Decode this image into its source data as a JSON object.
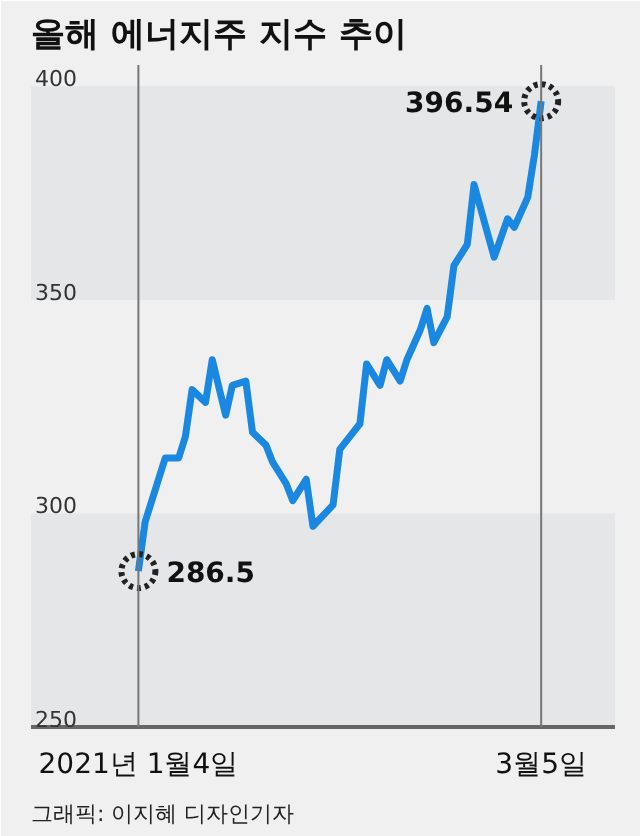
{
  "chart_data": {
    "type": "line",
    "title": "올해 에너지주 지수 추이",
    "x": [
      "2021-01-04",
      "2021-01-05",
      "2021-01-07",
      "2021-01-08",
      "2021-01-10",
      "2021-01-11",
      "2021-01-12",
      "2021-01-14",
      "2021-01-15",
      "2021-01-17",
      "2021-01-18",
      "2021-01-20",
      "2021-01-21",
      "2021-01-23",
      "2021-01-24",
      "2021-01-26",
      "2021-01-27",
      "2021-01-29",
      "2021-01-30",
      "2021-02-02",
      "2021-02-03",
      "2021-02-06",
      "2021-02-07",
      "2021-02-09",
      "2021-02-10",
      "2021-02-12",
      "2021-02-13",
      "2021-02-15",
      "2021-02-16",
      "2021-02-17",
      "2021-02-19",
      "2021-02-20",
      "2021-02-22",
      "2021-02-23",
      "2021-02-26",
      "2021-02-28",
      "2021-03-01",
      "2021-03-03",
      "2021-03-04",
      "2021-03-05"
    ],
    "series": [
      {
        "color": "#1a87e0",
        "values": [
          286.5,
          298,
          308,
          313,
          313,
          318,
          329,
          326,
          336,
          323,
          330,
          331,
          319,
          316,
          312,
          307,
          303,
          308,
          297,
          302,
          315,
          321,
          335,
          330,
          336,
          331,
          336,
          343,
          348,
          340,
          346,
          358,
          363,
          377,
          360,
          369,
          367,
          374,
          384,
          396.54
        ]
      }
    ],
    "xlim": [
      "2020-12-19",
      "2021-03-16"
    ],
    "xticks": [
      {
        "value": "2021-01-04",
        "label": "2021년 1월4일"
      },
      {
        "value": "2021-03-05",
        "label": "3월5일"
      }
    ],
    "ylim": [
      250,
      405
    ],
    "yticks": [
      250,
      300,
      350,
      400
    ],
    "bands": [
      {
        "axis": "y",
        "from": 250,
        "to": 300,
        "color": "#e5e6e8"
      },
      {
        "axis": "y",
        "from": 350,
        "to": 400,
        "color": "#e5e6e8"
      }
    ],
    "ref_lines": [
      {
        "axis": "x",
        "value": "2021-01-04",
        "label": null,
        "color": "#777777"
      },
      {
        "axis": "x",
        "value": "2021-03-05",
        "label": null,
        "color": "#777777"
      }
    ],
    "annotations": [
      {
        "text": "286.5",
        "x": "2021-01-04",
        "y": 286.5
      },
      {
        "text": "396.54",
        "x": "2021-03-05",
        "y": 396.54
      },
      "그래픽: 이지혜 디자인기자"
    ],
    "grid": false,
    "marker": "none",
    "line_style": "solid"
  }
}
